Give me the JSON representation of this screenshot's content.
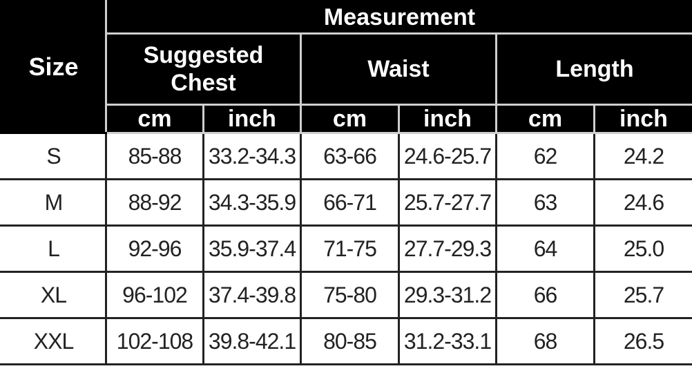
{
  "table": {
    "size_header": "Size",
    "measurement_header": "Measurement",
    "groups": [
      "Suggested Chest",
      "Waist",
      "Length"
    ],
    "units": [
      "cm",
      "inch",
      "cm",
      "inch",
      "cm",
      "inch"
    ],
    "rows": [
      [
        "S",
        "85-88",
        "33.2-34.3",
        "63-66",
        "24.6-25.7",
        "62",
        "24.2"
      ],
      [
        "M",
        "88-92",
        "34.3-35.9",
        "66-71",
        "25.7-27.7",
        "63",
        "24.6"
      ],
      [
        "L",
        "92-96",
        "35.9-37.4",
        "71-75",
        "27.7-29.3",
        "64",
        "25.0"
      ],
      [
        "XL",
        "96-102",
        "37.4-39.8",
        "75-80",
        "29.3-31.2",
        "66",
        "25.7"
      ],
      [
        "XXL",
        "102-108",
        "39.8-42.1",
        "80-85",
        "31.2-33.1",
        "68",
        "26.5"
      ]
    ]
  }
}
